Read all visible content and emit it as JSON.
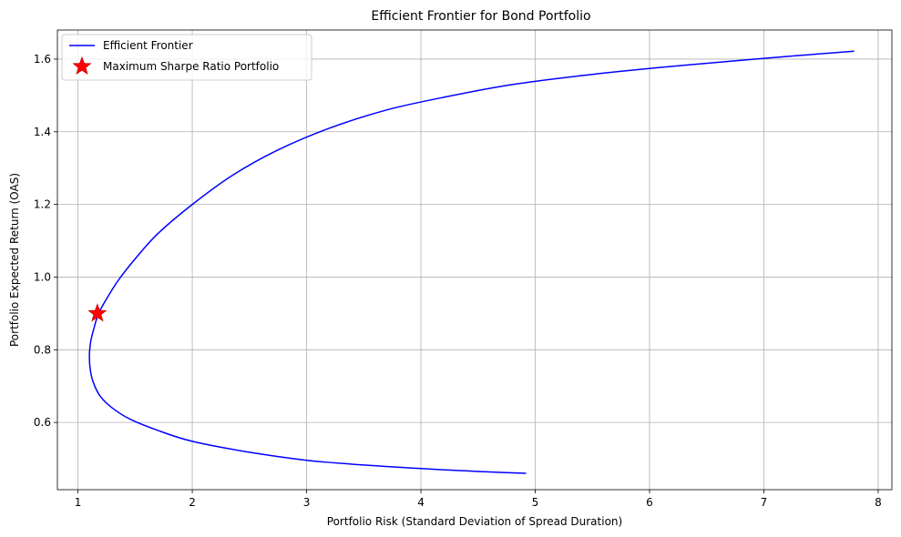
{
  "chart_data": {
    "type": "line",
    "title": "Efficient Frontier for Bond Portfolio",
    "xlabel": "Portfolio Risk (Standard Deviation of Spread Duration)",
    "ylabel": "Portfolio Expected Return (OAS)",
    "xlim": [
      0.82,
      8.12
    ],
    "ylim": [
      0.415,
      1.68
    ],
    "xticks": [
      1,
      2,
      3,
      4,
      5,
      6,
      7,
      8
    ],
    "yticks": [
      0.6,
      0.8,
      1.0,
      1.2,
      1.4,
      1.6
    ],
    "xtick_labels": [
      "1",
      "2",
      "3",
      "4",
      "5",
      "6",
      "7",
      "8"
    ],
    "ytick_labels": [
      "0.6",
      "0.8",
      "1.0",
      "1.2",
      "1.4",
      "1.6"
    ],
    "grid": true,
    "legend_position": "top-left",
    "series": [
      {
        "name": "Efficient Frontier",
        "kind": "line",
        "color": "#0000ff",
        "x": [
          4.92,
          4.5,
          4.0,
          3.5,
          3.0,
          2.5,
          2.0,
          1.7,
          1.45,
          1.3,
          1.2,
          1.14,
          1.11,
          1.1,
          1.11,
          1.14,
          1.18,
          1.25,
          1.35,
          1.5,
          1.7,
          2.0,
          2.35,
          2.75,
          3.2,
          3.7,
          4.2,
          4.8,
          5.5,
          6.2,
          7.0,
          7.79
        ],
        "y": [
          0.46,
          0.465,
          0.473,
          0.483,
          0.496,
          0.518,
          0.548,
          0.578,
          0.61,
          0.64,
          0.67,
          0.705,
          0.74,
          0.78,
          0.82,
          0.86,
          0.9,
          0.94,
          0.99,
          1.05,
          1.12,
          1.2,
          1.28,
          1.35,
          1.41,
          1.46,
          1.495,
          1.53,
          1.558,
          1.58,
          1.602,
          1.622
        ]
      },
      {
        "name": "Maximum Sharpe Ratio Portfolio",
        "kind": "marker",
        "marker": "star",
        "color": "#ff0000",
        "x": [
          1.17
        ],
        "y": [
          0.9
        ]
      }
    ]
  }
}
